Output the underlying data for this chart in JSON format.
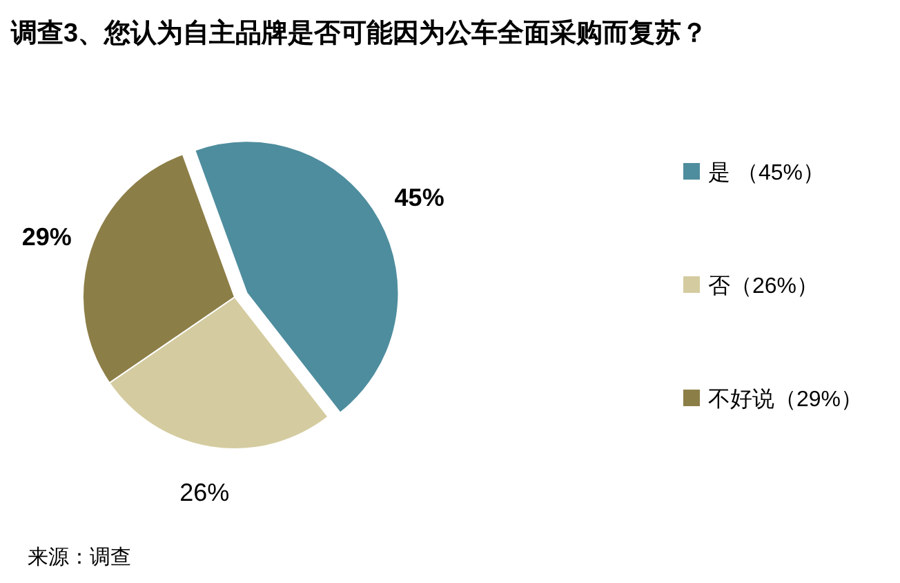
{
  "chart_data": {
    "type": "pie",
    "title": "调查3、您认为自主品牌是否可能因为公车全面采购而复苏？",
    "categories": [
      "是 （45%）",
      "否（26%）",
      "不好说（29%）"
    ],
    "values": [
      45,
      26,
      29
    ],
    "colors": [
      "#4e8d9e",
      "#d4cca0",
      "#8c7e47"
    ],
    "value_labels": [
      "45%",
      "26%",
      "29%"
    ],
    "legend": "right",
    "annotations": [
      "来源：调查"
    ]
  }
}
